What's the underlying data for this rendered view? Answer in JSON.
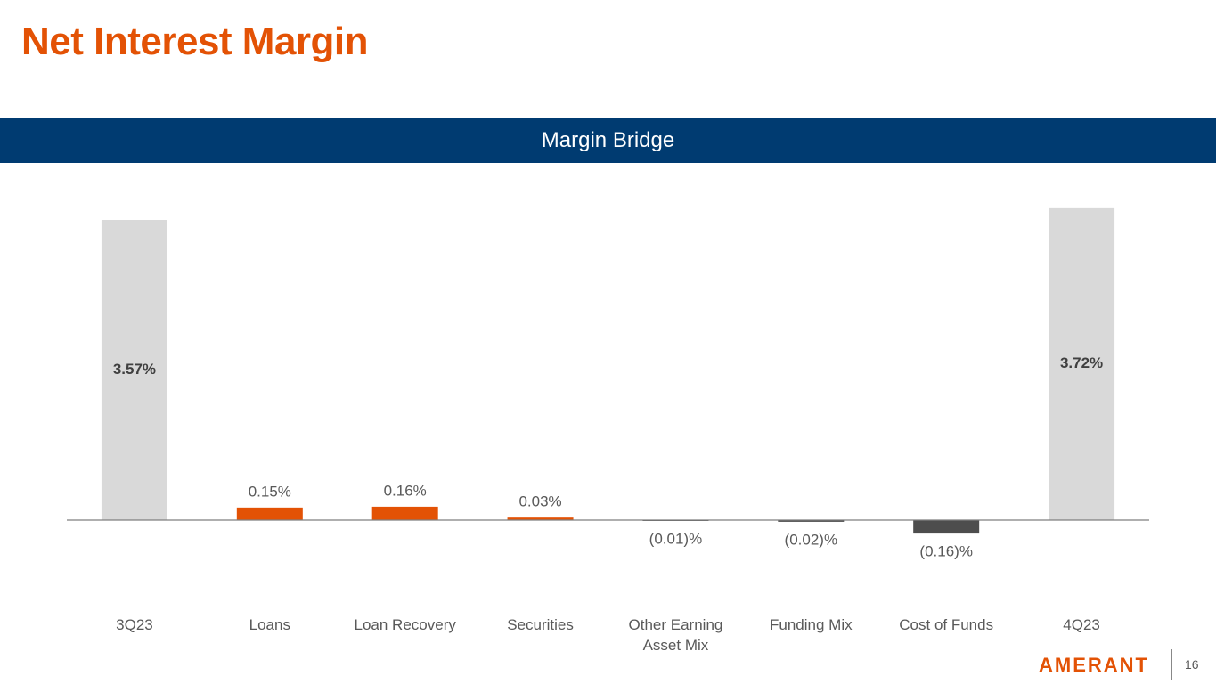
{
  "title": "Net Interest Margin",
  "footer": {
    "logo": "AMERANT",
    "page": 16
  },
  "chart_data": {
    "type": "bar",
    "title": "Margin Bridge",
    "categories": [
      "3Q23",
      "Loans",
      "Loan Recovery",
      "Securities",
      "Other Earning Asset Mix",
      "Funding Mix",
      "Cost of Funds",
      "4Q23"
    ],
    "values": [
      3.57,
      0.15,
      0.16,
      0.03,
      -0.01,
      -0.02,
      -0.16,
      3.72
    ],
    "value_labels": [
      "3.57%",
      "0.15%",
      "0.16%",
      "0.03%",
      "(0.01)%",
      "(0.02)%",
      "(0.16)%",
      "3.72%"
    ],
    "colors": [
      "#d9d9d9",
      "#e35205",
      "#e35205",
      "#e35205",
      "#4d4d4d",
      "#4d4d4d",
      "#4d4d4d",
      "#d9d9d9"
    ],
    "ylim": [
      -0.5,
      3.8
    ]
  }
}
